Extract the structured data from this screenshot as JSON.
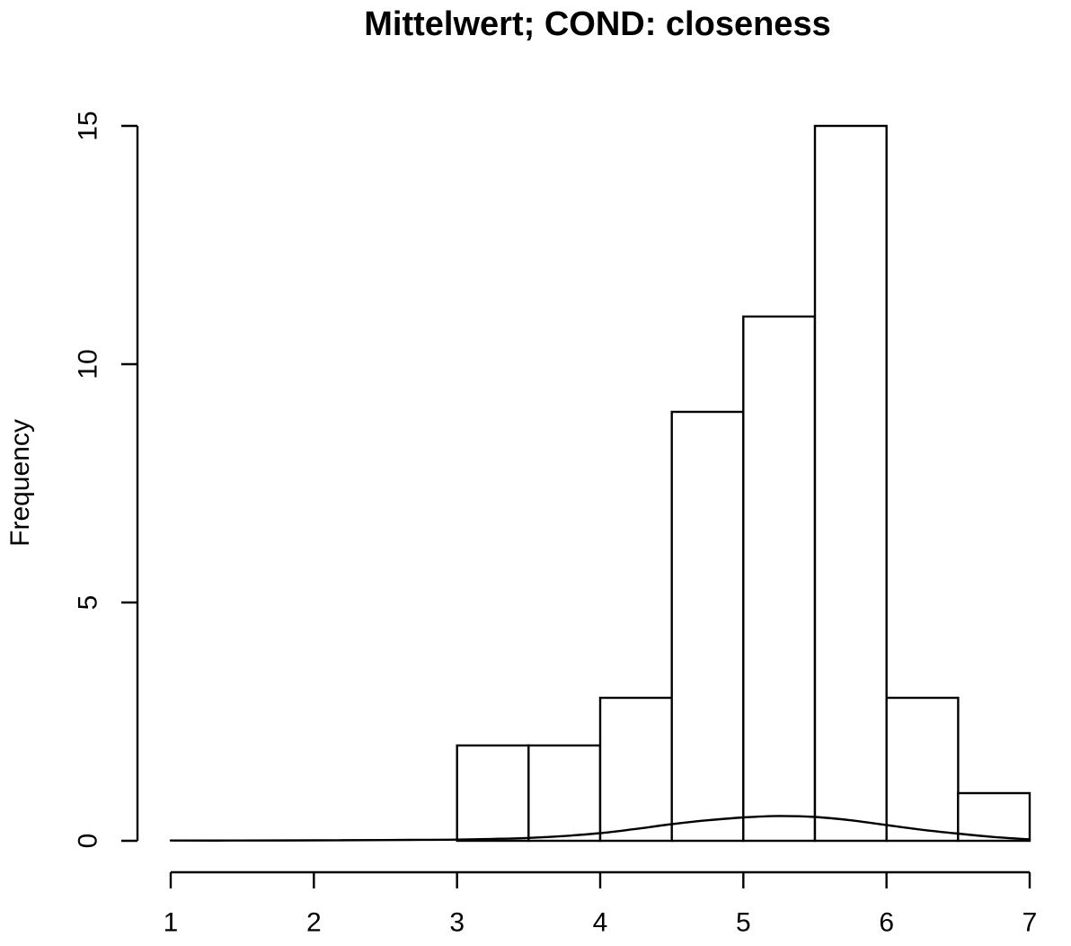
{
  "chart_data": {
    "type": "bar",
    "subtype": "histogram-with-density",
    "title": "Mittelwert; COND: closeness",
    "xlabel": "",
    "ylabel": "Frequency",
    "xlim": [
      1,
      7
    ],
    "ylim": [
      0,
      15
    ],
    "x_ticks": [
      1,
      2,
      3,
      4,
      5,
      6,
      7
    ],
    "y_ticks": [
      0,
      5,
      10,
      15
    ],
    "bin_breaks": [
      3.0,
      3.5,
      4.0,
      4.5,
      5.0,
      5.5,
      6.0,
      6.5,
      7.0
    ],
    "bin_counts": [
      2,
      2,
      3,
      9,
      11,
      15,
      3,
      1
    ],
    "density_curve": {
      "x": [
        1,
        1.5,
        2,
        2.5,
        2.75,
        3,
        3.25,
        3.5,
        3.75,
        4,
        4.25,
        4.5,
        4.75,
        5,
        5.25,
        5.5,
        5.75,
        6,
        6.25,
        6.5,
        6.75,
        7
      ],
      "y": [
        0.005,
        0.005,
        0.01,
        0.015,
        0.02,
        0.025,
        0.04,
        0.06,
        0.1,
        0.16,
        0.25,
        0.35,
        0.43,
        0.49,
        0.52,
        0.5,
        0.43,
        0.33,
        0.23,
        0.15,
        0.08,
        0.03
      ]
    },
    "legend": null,
    "grid": false,
    "colors": {
      "background": "#ffffff",
      "bar_fill": "#ffffff",
      "bar_stroke": "#000000",
      "axis": "#000000",
      "density_line": "#000000",
      "text": "#000000"
    }
  }
}
